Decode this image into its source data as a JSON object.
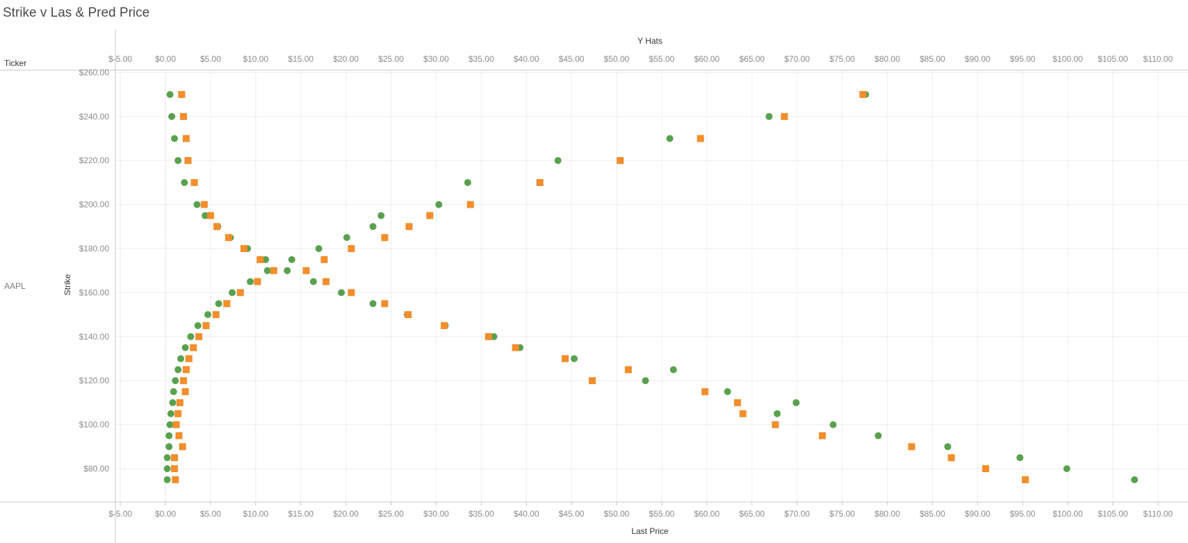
{
  "title": "Strike v Las & Pred Price",
  "ticker_header": "Ticker",
  "ticker_value": "AAPL",
  "colors": {
    "last_price": "#59a14f",
    "pred_price": "#f28e2b"
  },
  "chart_data": {
    "type": "scatter",
    "title": "Strike v Las & Pred Price",
    "x_top_label": "Y Hats",
    "x_bottom_label": "Last Price",
    "ylabel": "Strike",
    "xlim": [
      -5,
      110
    ],
    "xticks": [
      -5,
      0,
      5,
      10,
      15,
      20,
      25,
      30,
      35,
      40,
      45,
      50,
      55,
      60,
      65,
      70,
      75,
      80,
      85,
      90,
      95,
      100,
      105,
      110
    ],
    "xtick_labels": [
      "$-5.00",
      "$0.00",
      "$5.00",
      "$10.00",
      "$15.00",
      "$20.00",
      "$25.00",
      "$30.00",
      "$35.00",
      "$40.00",
      "$45.00",
      "$50.00",
      "$55.00",
      "$60.00",
      "$65.00",
      "$70.00",
      "$75.00",
      "$80.00",
      "$85.00",
      "$90.00",
      "$95.00",
      "$100.00",
      "$105.00",
      "$110.00"
    ],
    "yticks": [
      80,
      100,
      120,
      140,
      160,
      180,
      200,
      220,
      240,
      260
    ],
    "ytick_labels": [
      "$80.00",
      "$100.00",
      "$120.00",
      "$140.00",
      "$160.00",
      "$180.00",
      "$200.00",
      "$220.00",
      "$240.00",
      "$260.00"
    ],
    "grid": true,
    "series": [
      {
        "marker": "circle",
        "color": "#59a14f",
        "points": [
          [
            0.5,
            250
          ],
          [
            0.7,
            240
          ],
          [
            1.0,
            230
          ],
          [
            1.4,
            220
          ],
          [
            2.1,
            210
          ],
          [
            3.5,
            200
          ],
          [
            4.4,
            195
          ],
          [
            5.8,
            190
          ],
          [
            7.2,
            185
          ],
          [
            9.1,
            180
          ],
          [
            11.1,
            175
          ],
          [
            11.3,
            170
          ],
          [
            9.4,
            165
          ],
          [
            7.4,
            160
          ],
          [
            5.9,
            155
          ],
          [
            4.7,
            150
          ],
          [
            3.6,
            145
          ],
          [
            2.8,
            140
          ],
          [
            2.2,
            135
          ],
          [
            1.7,
            130
          ],
          [
            1.4,
            125
          ],
          [
            1.1,
            120
          ],
          [
            0.9,
            115
          ],
          [
            0.8,
            110
          ],
          [
            0.6,
            105
          ],
          [
            0.5,
            100
          ],
          [
            0.4,
            95
          ],
          [
            0.4,
            90
          ],
          [
            0.2,
            85
          ],
          [
            0.2,
            80
          ],
          [
            0.2,
            75
          ],
          [
            77.6,
            250
          ],
          [
            66.9,
            240
          ],
          [
            55.9,
            230
          ],
          [
            43.5,
            220
          ],
          [
            33.5,
            210
          ],
          [
            30.3,
            200
          ],
          [
            23.9,
            195
          ],
          [
            23.0,
            190
          ],
          [
            20.1,
            185
          ],
          [
            17.0,
            180
          ],
          [
            14.0,
            175
          ],
          [
            13.5,
            170
          ],
          [
            16.4,
            165
          ],
          [
            19.5,
            160
          ],
          [
            23.0,
            155
          ],
          [
            26.8,
            150
          ],
          [
            31.0,
            145
          ],
          [
            36.4,
            140
          ],
          [
            39.3,
            135
          ],
          [
            45.3,
            130
          ],
          [
            56.3,
            125
          ],
          [
            53.2,
            120
          ],
          [
            62.3,
            115
          ],
          [
            69.9,
            110
          ],
          [
            67.8,
            105
          ],
          [
            74.0,
            100
          ],
          [
            79.0,
            95
          ],
          [
            86.7,
            90
          ],
          [
            94.7,
            85
          ],
          [
            99.9,
            80
          ],
          [
            107.4,
            75
          ]
        ]
      },
      {
        "marker": "square",
        "color": "#f28e2b",
        "points": [
          [
            1.8,
            250
          ],
          [
            2.0,
            240
          ],
          [
            2.3,
            230
          ],
          [
            2.5,
            220
          ],
          [
            3.2,
            210
          ],
          [
            4.3,
            200
          ],
          [
            5.0,
            195
          ],
          [
            5.7,
            190
          ],
          [
            7.0,
            185
          ],
          [
            8.7,
            180
          ],
          [
            10.5,
            175
          ],
          [
            12.0,
            170
          ],
          [
            10.2,
            165
          ],
          [
            8.3,
            160
          ],
          [
            6.8,
            155
          ],
          [
            5.6,
            150
          ],
          [
            4.5,
            145
          ],
          [
            3.7,
            140
          ],
          [
            3.1,
            135
          ],
          [
            2.6,
            130
          ],
          [
            2.3,
            125
          ],
          [
            2.0,
            120
          ],
          [
            2.2,
            115
          ],
          [
            1.6,
            110
          ],
          [
            1.4,
            105
          ],
          [
            1.2,
            100
          ],
          [
            1.5,
            95
          ],
          [
            1.9,
            90
          ],
          [
            1.0,
            85
          ],
          [
            1.0,
            80
          ],
          [
            1.1,
            75
          ],
          [
            77.3,
            250
          ],
          [
            68.6,
            240
          ],
          [
            59.3,
            230
          ],
          [
            50.4,
            220
          ],
          [
            41.5,
            210
          ],
          [
            33.8,
            200
          ],
          [
            29.3,
            195
          ],
          [
            27.0,
            190
          ],
          [
            24.3,
            185
          ],
          [
            20.6,
            180
          ],
          [
            17.6,
            175
          ],
          [
            15.6,
            170
          ],
          [
            17.8,
            165
          ],
          [
            20.6,
            160
          ],
          [
            24.3,
            155
          ],
          [
            26.9,
            150
          ],
          [
            30.9,
            145
          ],
          [
            35.8,
            140
          ],
          [
            38.8,
            135
          ],
          [
            44.3,
            130
          ],
          [
            51.3,
            125
          ],
          [
            47.3,
            120
          ],
          [
            59.8,
            115
          ],
          [
            63.4,
            110
          ],
          [
            64.0,
            105
          ],
          [
            67.6,
            100
          ],
          [
            72.8,
            95
          ],
          [
            82.7,
            90
          ],
          [
            87.1,
            85
          ],
          [
            90.9,
            80
          ],
          [
            95.3,
            75
          ]
        ]
      }
    ]
  }
}
